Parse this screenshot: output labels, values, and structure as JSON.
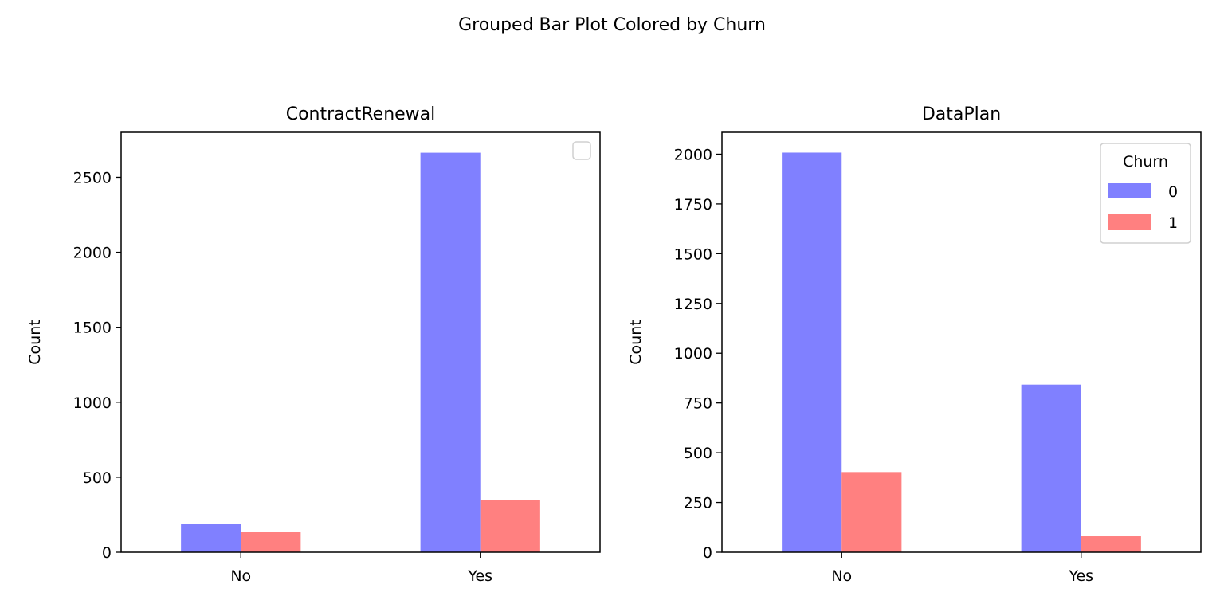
{
  "figure": {
    "title": "Grouped Bar Plot Colored by Churn"
  },
  "colors": {
    "series0": "#8080ff",
    "series1": "#ff8080",
    "axis": "#000000"
  },
  "chart_data": [
    {
      "type": "bar",
      "title": "ContractRenewal",
      "xlabel": "",
      "ylabel": "Count",
      "categories": [
        "No",
        "Yes"
      ],
      "series": [
        {
          "values": [
            186,
            2664
          ]
        },
        {
          "values": [
            137,
            346
          ]
        }
      ],
      "ylim": [
        0,
        2800
      ],
      "yticks": [
        0,
        500,
        1000,
        1500,
        2000,
        2500
      ],
      "legend": {
        "shown": true,
        "entries": [],
        "placement": "upper right"
      },
      "grid": false
    },
    {
      "type": "bar",
      "title": "DataPlan",
      "xlabel": "",
      "ylabel": "Count",
      "categories": [
        "No",
        "Yes"
      ],
      "series": [
        {
          "name": "0",
          "values": [
            2008,
            842
          ]
        },
        {
          "name": "1",
          "values": [
            403,
            80
          ]
        }
      ],
      "ylim": [
        0,
        2110
      ],
      "yticks": [
        0,
        250,
        500,
        750,
        1000,
        1250,
        1500,
        1750,
        2000
      ],
      "legend": {
        "shown": true,
        "title": "Churn",
        "entries": [
          "0",
          "1"
        ],
        "placement": "upper right"
      },
      "grid": false
    }
  ]
}
